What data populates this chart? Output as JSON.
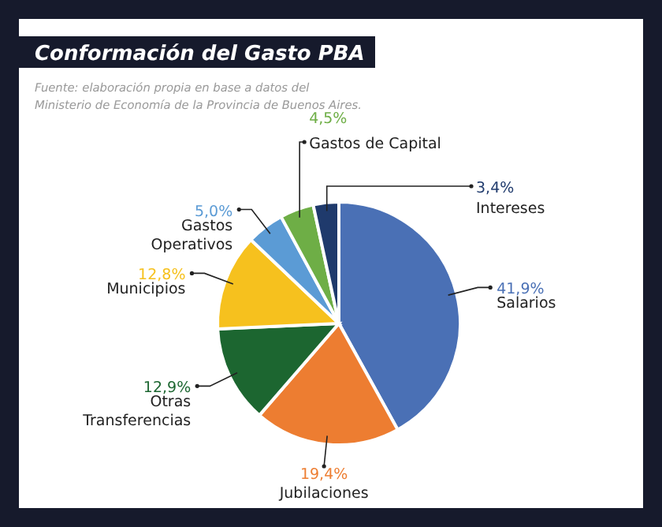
{
  "chart_data": {
    "type": "pie",
    "title": "Conformación del Gasto PBA",
    "annotations": [
      "Fuente: elaboración propia en base a datos del Ministerio de Economía de la Provincia de Buenos Aires."
    ],
    "categories": [
      "Salarios",
      "Jubilaciones",
      "Otras Transferencias",
      "Municipios",
      "Gastos Operativos",
      "Gastos de Capital",
      "Intereses"
    ],
    "values": [
      41.9,
      19.4,
      12.9,
      12.8,
      5.0,
      4.5,
      3.4
    ],
    "colors": [
      "#4a70b5",
      "#ed7d31",
      "#1c6630",
      "#f6c11e",
      "#5b9bd5",
      "#6eae46",
      "#1f3a6c"
    ],
    "value_labels": [
      "41,9%",
      "19,4%",
      "12,9%",
      "12,8%",
      "5,0%",
      "4,5%",
      "3,4%"
    ]
  }
}
